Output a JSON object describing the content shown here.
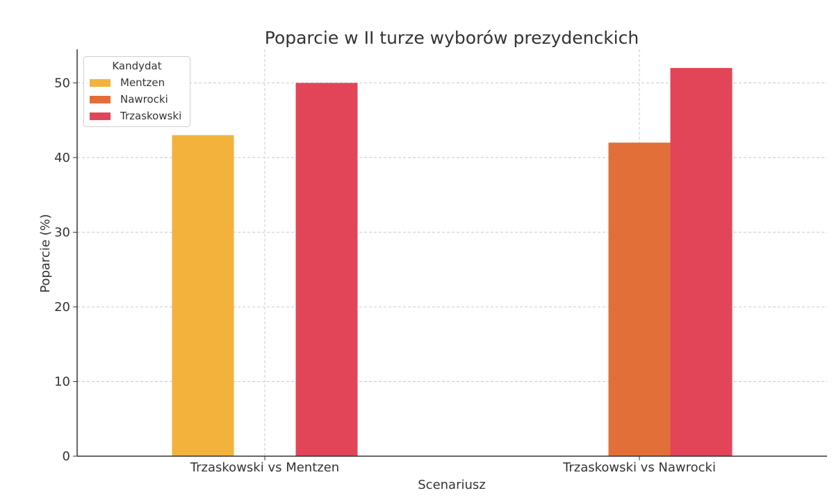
{
  "chart_data": {
    "type": "bar",
    "title": "Poparcie w II turze wyborów prezydenckich",
    "xlabel": "Scenariusz",
    "ylabel": "Poparcie (%)",
    "ylim": [
      0,
      54.5
    ],
    "yticks": [
      0,
      10,
      20,
      30,
      40,
      50
    ],
    "grid": true,
    "legend": {
      "title": "Kandydat",
      "placement": "top-left"
    },
    "categories": [
      "Trzaskowski vs Mentzen",
      "Trzaskowski vs Nawrocki"
    ],
    "series": [
      {
        "name": "Mentzen",
        "color": "#f2b23c",
        "values": [
          43,
          null
        ]
      },
      {
        "name": "Nawrocki",
        "color": "#e26f38",
        "values": [
          null,
          42
        ]
      },
      {
        "name": "Trzaskowski",
        "color": "#e24558",
        "values": [
          50,
          52
        ]
      }
    ]
  }
}
